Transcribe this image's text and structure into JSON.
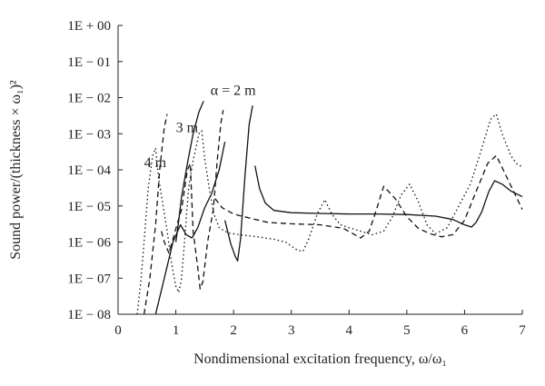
{
  "chart_data": {
    "type": "line",
    "title": "",
    "xlabel": "Nondimensional excitation frequency, ω/ω₁",
    "ylabel": "Sound power/(thickness × ω₁)²",
    "xlim": [
      0,
      7
    ],
    "ylim": [
      1e-08,
      1
    ],
    "y_scale": "log",
    "grid": false,
    "legend": "none",
    "x_ticks": [
      0,
      1,
      2,
      3,
      4,
      5,
      6,
      7
    ],
    "x_tick_labels": [
      "0",
      "1",
      "2",
      "3",
      "4",
      "5",
      "6",
      "7"
    ],
    "y_ticks": [
      1,
      0.1,
      0.01,
      0.001,
      0.0001,
      1e-05,
      1e-06,
      1e-07,
      1e-08
    ],
    "y_tick_labels": [
      "1E + 00",
      "1E − 01",
      "1E − 02",
      "1E − 03",
      "1E − 04",
      "1E − 05",
      "1E − 06",
      "1E − 07",
      "1E − 08"
    ],
    "annotations": [
      {
        "text": "α = 2 m",
        "x": 1.6,
        "y": 0.012
      },
      {
        "text": "3 m",
        "x": 1.0,
        "y": 0.0011
      },
      {
        "text": "4 m",
        "x": 0.45,
        "y": 0.00012
      }
    ],
    "series": [
      {
        "style": "solid",
        "segments": [
          [
            [
              0.65,
              1e-08
            ],
            [
              0.8,
              1e-07
            ],
            [
              0.95,
              1e-06
            ],
            [
              1.08,
              3e-06
            ],
            [
              1.18,
              1.6e-06
            ],
            [
              1.28,
              1.3e-06
            ],
            [
              1.38,
              2.5e-06
            ],
            [
              1.5,
              9e-06
            ],
            [
              1.62,
              2.2e-05
            ],
            [
              1.75,
              0.0001
            ],
            [
              1.85,
              0.0006
            ]
          ],
          [
            [
              1.0,
              1e-06
            ],
            [
              1.05,
              4e-06
            ],
            [
              1.1,
              1.8e-05
            ],
            [
              1.2,
              0.00015
            ],
            [
              1.3,
              0.001
            ],
            [
              1.4,
              0.004
            ],
            [
              1.48,
              0.008
            ]
          ],
          [
            [
              1.85,
              4e-06
            ],
            [
              1.95,
              9e-07
            ],
            [
              2.03,
              4e-07
            ],
            [
              2.07,
              3e-07
            ],
            [
              2.12,
              1.2e-06
            ],
            [
              2.2,
              8e-05
            ],
            [
              2.27,
              0.0018
            ],
            [
              2.33,
              0.006
            ]
          ],
          [
            [
              2.37,
              0.00013
            ],
            [
              2.45,
              3e-05
            ],
            [
              2.55,
              1.2e-05
            ],
            [
              2.7,
              7.5e-06
            ],
            [
              3.0,
              6.5e-06
            ],
            [
              3.5,
              6.2e-06
            ],
            [
              4.0,
              6e-06
            ],
            [
              4.5,
              6e-06
            ],
            [
              5.0,
              5.8e-06
            ],
            [
              5.5,
              5.2e-06
            ],
            [
              5.8,
              4.2e-06
            ],
            [
              6.0,
              3e-06
            ],
            [
              6.12,
              2.6e-06
            ],
            [
              6.2,
              3.5e-06
            ],
            [
              6.3,
              7e-06
            ],
            [
              6.42,
              2.5e-05
            ],
            [
              6.52,
              5e-05
            ],
            [
              6.65,
              4e-05
            ],
            [
              6.8,
              2.6e-05
            ],
            [
              7.0,
              1.8e-05
            ]
          ]
        ]
      },
      {
        "style": "dashed",
        "segments": [
          [
            [
              0.45,
              1e-08
            ],
            [
              0.55,
              1e-07
            ],
            [
              0.65,
              3e-06
            ],
            [
              0.72,
              0.0001
            ],
            [
              0.8,
              0.0015
            ],
            [
              0.85,
              0.0035
            ]
          ],
          [
            [
              0.75,
              2e-06
            ],
            [
              0.8,
              1e-06
            ],
            [
              0.88,
              5e-07
            ],
            [
              0.95,
              1.2e-06
            ],
            [
              1.02,
              3e-06
            ],
            [
              1.1,
              8e-06
            ],
            [
              1.2,
              0.0001
            ],
            [
              1.25,
              0.00015
            ],
            [
              1.3,
              2e-06
            ],
            [
              1.38,
              2e-07
            ],
            [
              1.42,
              5e-08
            ],
            [
              1.47,
              8e-08
            ],
            [
              1.55,
              1e-06
            ],
            [
              1.65,
              8e-06
            ],
            [
              1.72,
              0.0002
            ],
            [
              1.78,
              0.002
            ],
            [
              1.82,
              0.0045
            ]
          ],
          [
            [
              1.68,
              1.6e-05
            ],
            [
              1.8,
              9e-06
            ],
            [
              2.0,
              6e-06
            ],
            [
              2.3,
              4.5e-06
            ],
            [
              2.6,
              3.5e-06
            ],
            [
              3.0,
              3.2e-06
            ],
            [
              3.5,
              3e-06
            ],
            [
              3.9,
              2.4e-06
            ],
            [
              4.1,
              1.6e-06
            ],
            [
              4.2,
              1.3e-06
            ],
            [
              4.35,
              2e-06
            ],
            [
              4.45,
              6e-06
            ],
            [
              4.6,
              3.5e-05
            ],
            [
              4.8,
              1.6e-05
            ],
            [
              5.0,
              5e-06
            ],
            [
              5.2,
              2.4e-06
            ],
            [
              5.4,
              1.7e-06
            ],
            [
              5.6,
              1.4e-06
            ],
            [
              5.8,
              1.6e-06
            ],
            [
              6.0,
              4e-06
            ],
            [
              6.2,
              2.5e-05
            ],
            [
              6.4,
              0.00015
            ],
            [
              6.55,
              0.00025
            ],
            [
              6.7,
              8e-05
            ],
            [
              6.85,
              2.5e-05
            ],
            [
              7.0,
              8e-06
            ]
          ]
        ]
      },
      {
        "style": "dotted",
        "segments": [
          [
            [
              0.33,
              1e-08
            ],
            [
              0.4,
              1e-07
            ],
            [
              0.45,
              1e-06
            ],
            [
              0.52,
              3e-05
            ],
            [
              0.6,
              0.00025
            ],
            [
              0.65,
              0.0004
            ],
            [
              0.7,
              6e-05
            ],
            [
              0.78,
              1e-05
            ],
            [
              0.85,
              2e-06
            ],
            [
              0.92,
              3e-07
            ],
            [
              1.0,
              6e-08
            ],
            [
              1.05,
              4e-08
            ],
            [
              1.1,
              1e-07
            ],
            [
              1.15,
              1e-06
            ],
            [
              1.22,
              3e-05
            ],
            [
              1.3,
              0.00018
            ],
            [
              1.4,
              0.001
            ],
            [
              1.45,
              0.0012
            ],
            [
              1.5,
              0.0002
            ],
            [
              1.58,
              3e-05
            ],
            [
              1.66,
              6e-06
            ],
            [
              1.75,
              2.5e-06
            ],
            [
              1.9,
              1.8e-06
            ],
            [
              2.1,
              1.6e-06
            ],
            [
              2.4,
              1.4e-06
            ],
            [
              2.7,
              1.2e-06
            ],
            [
              2.9,
              1e-06
            ],
            [
              3.1,
              6e-07
            ],
            [
              3.2,
              5.5e-07
            ],
            [
              3.3,
              1.2e-06
            ],
            [
              3.45,
              6e-06
            ],
            [
              3.58,
              1.5e-05
            ],
            [
              3.7,
              6e-06
            ],
            [
              3.85,
              3e-06
            ],
            [
              4.0,
              2.5e-06
            ],
            [
              4.2,
              2e-06
            ],
            [
              4.4,
              1.6e-06
            ],
            [
              4.6,
              2e-06
            ],
            [
              4.75,
              5e-06
            ],
            [
              4.9,
              2e-05
            ],
            [
              5.05,
              4e-05
            ],
            [
              5.2,
              1.3e-05
            ],
            [
              5.35,
              3e-06
            ],
            [
              5.5,
              1.7e-06
            ],
            [
              5.7,
              2.5e-06
            ],
            [
              5.9,
              1e-05
            ],
            [
              6.1,
              4e-05
            ],
            [
              6.3,
              0.0004
            ],
            [
              6.45,
              0.0025
            ],
            [
              6.55,
              0.0035
            ],
            [
              6.65,
              0.001
            ],
            [
              6.8,
              0.00025
            ],
            [
              6.9,
              0.00015
            ],
            [
              7.0,
              0.00012
            ]
          ]
        ]
      }
    ]
  }
}
